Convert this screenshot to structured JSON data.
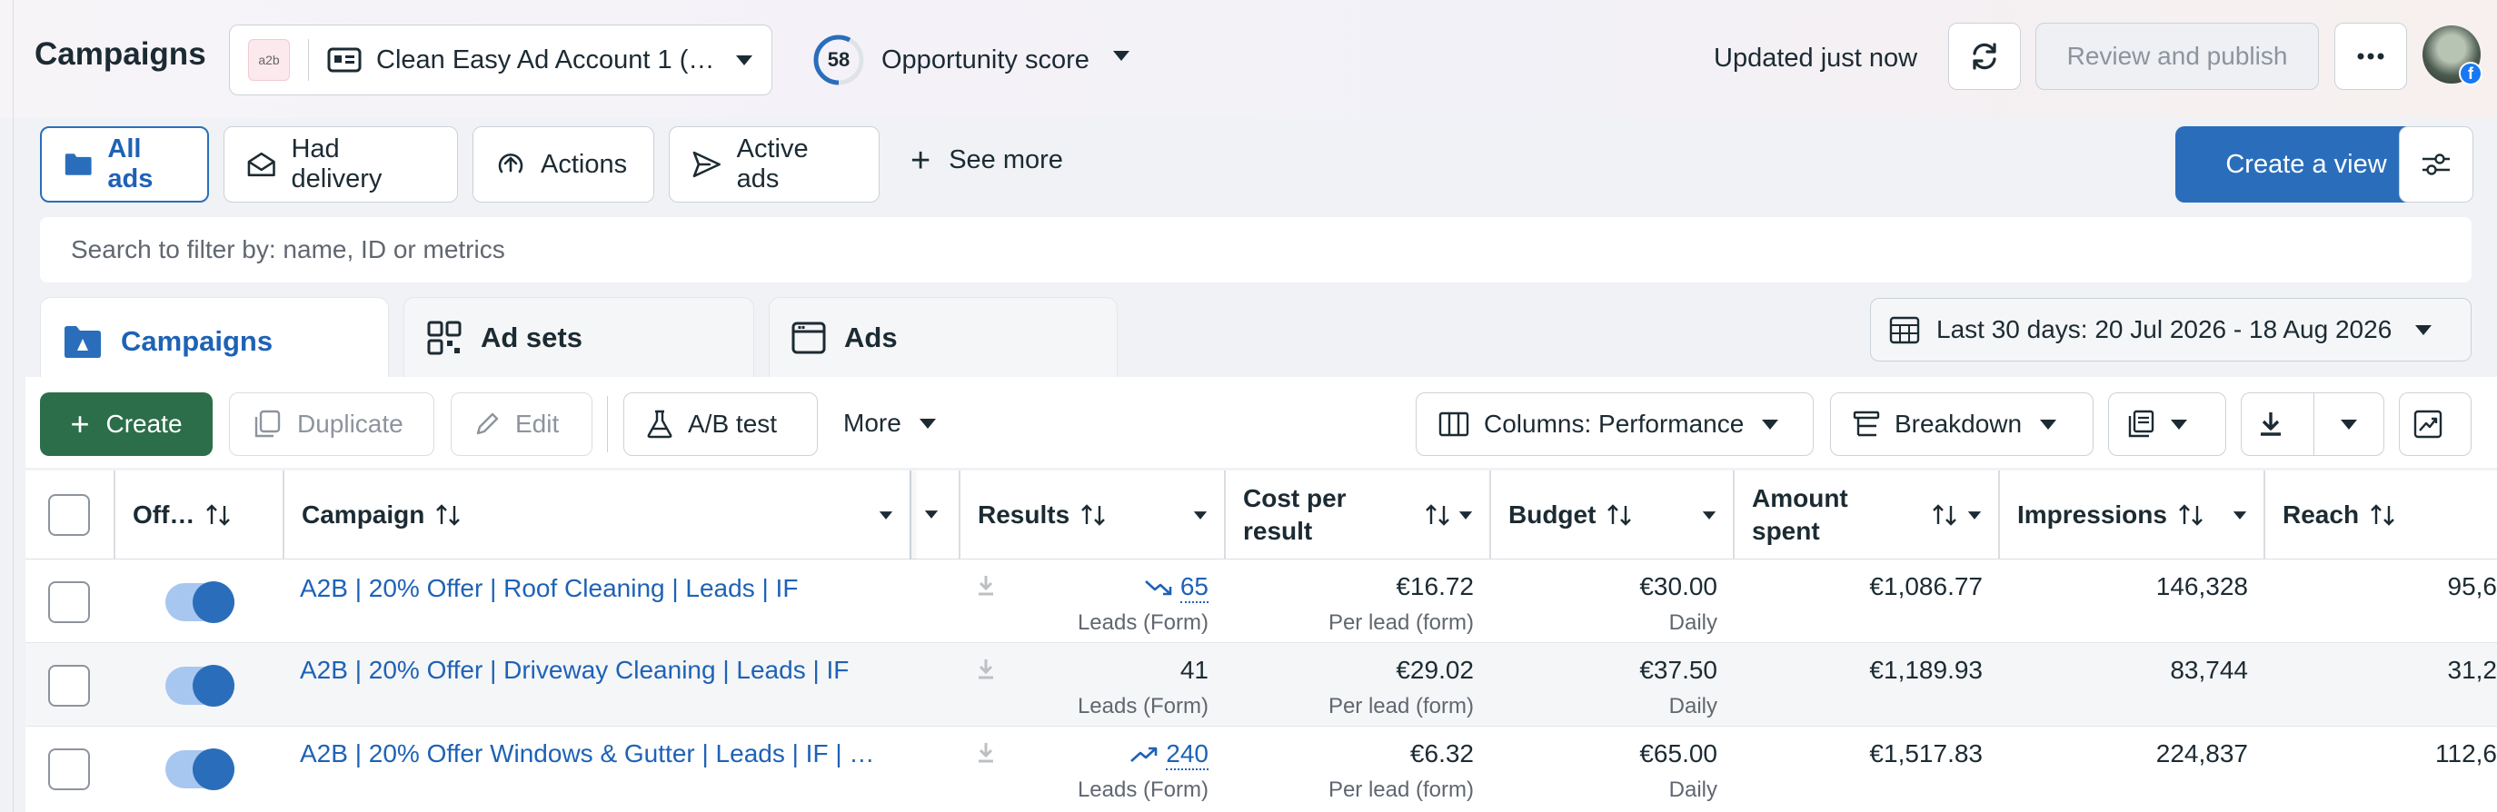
{
  "header": {
    "title": "Campaigns",
    "account_logo_text": "a2b",
    "account_name": "Clean Easy Ad Account 1 (…",
    "opportunity_score": "58",
    "opportunity_label": "Opportunity score",
    "updated": "Updated just now",
    "review_label": "Review and publish",
    "facebook_badge": "f"
  },
  "views": {
    "items": [
      {
        "label": "All ads",
        "icon": "folder-icon",
        "active": true
      },
      {
        "label": "Had delivery",
        "icon": "envelope-icon",
        "active": false
      },
      {
        "label": "Actions",
        "icon": "upload-circle-icon",
        "active": false
      },
      {
        "label": "Active ads",
        "icon": "send-icon",
        "active": false
      }
    ],
    "see_more": "See more",
    "create_view": "Create a view"
  },
  "search": {
    "placeholder": "Search to filter by: name, ID or metrics"
  },
  "tabs": [
    {
      "label": "Campaigns",
      "active": true
    },
    {
      "label": "Ad sets",
      "active": false
    },
    {
      "label": "Ads",
      "active": false
    }
  ],
  "date_range": "Last 30 days: 20 Jul 2026 - 18 Aug 2026",
  "toolbar": {
    "create": "Create",
    "duplicate": "Duplicate",
    "edit": "Edit",
    "ab_test": "A/B test",
    "more": "More",
    "columns": "Columns: Performance",
    "breakdown": "Breakdown"
  },
  "table": {
    "headers": {
      "offon": "Off…",
      "campaign": "Campaign",
      "results": "Results",
      "cost_per_result_1": "Cost per",
      "cost_per_result_2": "result",
      "budget": "Budget",
      "amount_spent_1": "Amount",
      "amount_spent_2": "spent",
      "impressions": "Impressions",
      "reach": "Reach"
    },
    "rows": [
      {
        "campaign": "A2B | 20% Offer | Roof Cleaning | Leads | IF",
        "results": "65",
        "results_trend": "down",
        "results_sub": "Leads (Form)",
        "cost": "€16.72",
        "cost_sub": "Per lead (form)",
        "budget": "€30.00",
        "budget_sub": "Daily",
        "spent": "€1,086.77",
        "impressions": "146,328",
        "reach": "95,6"
      },
      {
        "campaign": "A2B | 20% Offer | Driveway Cleaning | Leads | IF",
        "results": "41",
        "results_trend": "none",
        "results_sub": "Leads (Form)",
        "cost": "€29.02",
        "cost_sub": "Per lead (form)",
        "budget": "€37.50",
        "budget_sub": "Daily",
        "spent": "€1,189.93",
        "impressions": "83,744",
        "reach": "31,2"
      },
      {
        "campaign": "A2B | 20% Offer Windows & Gutter | Leads | IF | …",
        "results": "240",
        "results_trend": "up",
        "results_sub": "Leads (Form)",
        "cost": "€6.32",
        "cost_sub": "Per lead (form)",
        "budget": "€65.00",
        "budget_sub": "Daily",
        "spent": "€1,517.83",
        "impressions": "224,837",
        "reach": "112,6"
      }
    ]
  },
  "colors": {
    "accent": "#2a6ebb",
    "create_green": "#2c6e49",
    "link": "#1e62b6"
  }
}
